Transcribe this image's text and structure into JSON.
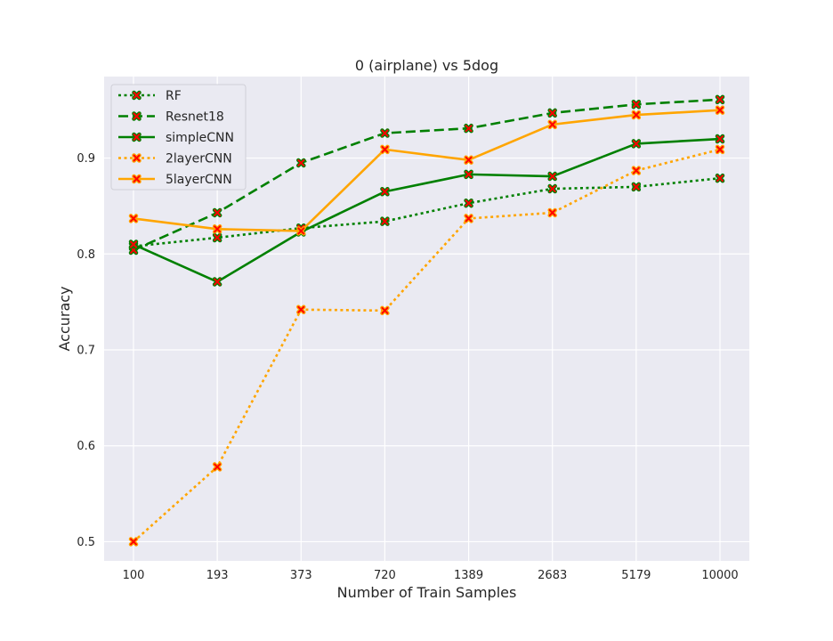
{
  "chart_data": {
    "type": "line",
    "title": "0 (airplane)  vs 5dog",
    "xlabel": "Number of Train Samples",
    "ylabel": "Accuracy",
    "categories": [
      "100",
      "193",
      "373",
      "720",
      "1389",
      "2683",
      "5179",
      "10000"
    ],
    "ylim": [
      0.48,
      0.985
    ],
    "yticks": [
      "0.5",
      "0.6",
      "0.7",
      "0.8",
      "0.9"
    ],
    "grid": true,
    "legend_position": "top-left",
    "marker_color": "#ff0000",
    "background": "#eaeaf2",
    "series": [
      {
        "name": "RF",
        "color": "#008000",
        "style": "dotted",
        "values": [
          0.808,
          0.817,
          0.827,
          0.834,
          0.853,
          0.868,
          0.87,
          0.879
        ]
      },
      {
        "name": "Resnet18",
        "color": "#008000",
        "style": "dashed",
        "values": [
          0.804,
          0.843,
          0.895,
          0.926,
          0.931,
          0.947,
          0.956,
          0.961
        ]
      },
      {
        "name": "simpleCNN",
        "color": "#008000",
        "style": "solid",
        "values": [
          0.81,
          0.771,
          0.823,
          0.865,
          0.883,
          0.881,
          0.915,
          0.92
        ]
      },
      {
        "name": "2layerCNN",
        "color": "#ffa500",
        "style": "dotted",
        "values": [
          0.5,
          0.578,
          0.742,
          0.741,
          0.837,
          0.843,
          0.887,
          0.909
        ]
      },
      {
        "name": "5layerCNN",
        "color": "#ffa500",
        "style": "solid",
        "values": [
          0.837,
          0.826,
          0.824,
          0.909,
          0.898,
          0.935,
          0.945,
          0.95
        ]
      }
    ]
  }
}
